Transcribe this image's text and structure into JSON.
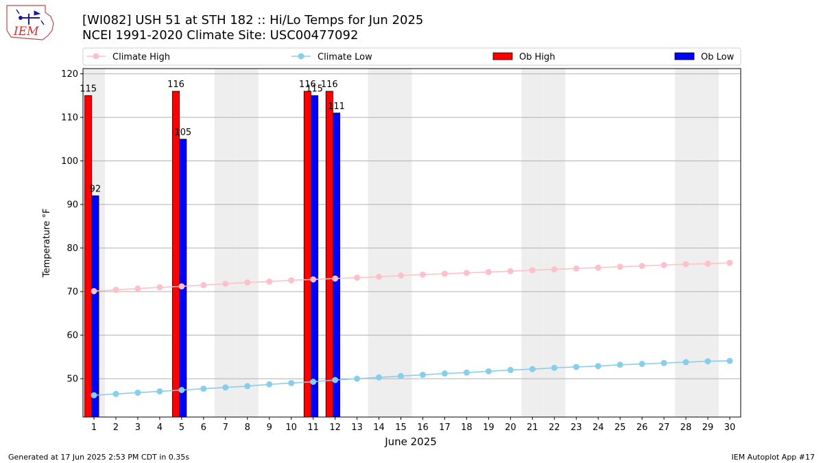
{
  "header": {
    "title_line1": "[WI082] USH 51 at STH 182  :: Hi/Lo Temps for Jun 2025",
    "title_line2": "NCEI 1991-2020 Climate Site: USC00477092",
    "logo_text": "IEM"
  },
  "legend": [
    {
      "label": "Climate High",
      "kind": "line",
      "color": "#ffc0cb"
    },
    {
      "label": "Climate Low",
      "kind": "line",
      "color": "#87ceeb"
    },
    {
      "label": "Ob High",
      "kind": "bar",
      "color": "#ff0000"
    },
    {
      "label": "Ob Low",
      "kind": "bar",
      "color": "#0000ff"
    }
  ],
  "footer": {
    "left": "Generated at 17 Jun 2025 2:53 PM CDT in 0.35s",
    "right": "IEM Autoplot App #17"
  },
  "chart_data": {
    "type": "bar",
    "xlabel": "June 2025",
    "ylabel": "Temperature °F",
    "ylim": [
      41.2,
      121.2
    ],
    "yticks": [
      50,
      60,
      70,
      80,
      90,
      100,
      110,
      120
    ],
    "x": [
      1,
      2,
      3,
      4,
      5,
      6,
      7,
      8,
      9,
      10,
      11,
      12,
      13,
      14,
      15,
      16,
      17,
      18,
      19,
      20,
      21,
      22,
      23,
      24,
      25,
      26,
      27,
      28,
      29,
      30
    ],
    "weekend_days": [
      1,
      7,
      8,
      14,
      15,
      21,
      22,
      28,
      29
    ],
    "grid": "horizontal",
    "legend_position": "top",
    "series": [
      {
        "name": "Climate High",
        "type": "line",
        "color": "#ffc0cb",
        "values": [
          70.1,
          70.4,
          70.7,
          71.0,
          71.2,
          71.5,
          71.8,
          72.1,
          72.3,
          72.6,
          72.8,
          73.0,
          73.2,
          73.4,
          73.7,
          73.9,
          74.1,
          74.3,
          74.5,
          74.7,
          74.9,
          75.1,
          75.3,
          75.5,
          75.7,
          75.9,
          76.1,
          76.3,
          76.4,
          76.6
        ]
      },
      {
        "name": "Climate Low",
        "type": "line",
        "color": "#87ceeb",
        "values": [
          46.2,
          46.5,
          46.8,
          47.1,
          47.4,
          47.7,
          48.0,
          48.3,
          48.7,
          49.0,
          49.3,
          49.7,
          50.0,
          50.3,
          50.6,
          50.9,
          51.2,
          51.4,
          51.7,
          52.0,
          52.2,
          52.5,
          52.7,
          52.9,
          53.2,
          53.4,
          53.6,
          53.8,
          54.0,
          54.1
        ]
      },
      {
        "name": "Ob High",
        "type": "bar",
        "color": "#ff0000",
        "values": [
          115,
          null,
          null,
          null,
          116,
          null,
          null,
          null,
          null,
          null,
          116,
          116,
          null,
          null,
          null,
          null,
          null,
          null,
          null,
          null,
          null,
          null,
          null,
          null,
          null,
          null,
          null,
          null,
          null,
          null
        ]
      },
      {
        "name": "Ob Low",
        "type": "bar",
        "color": "#0000ff",
        "values": [
          92,
          null,
          null,
          null,
          105,
          null,
          null,
          null,
          null,
          null,
          115,
          111,
          null,
          null,
          null,
          null,
          null,
          null,
          null,
          null,
          null,
          null,
          null,
          null,
          null,
          null,
          null,
          null,
          null,
          null
        ]
      }
    ]
  }
}
